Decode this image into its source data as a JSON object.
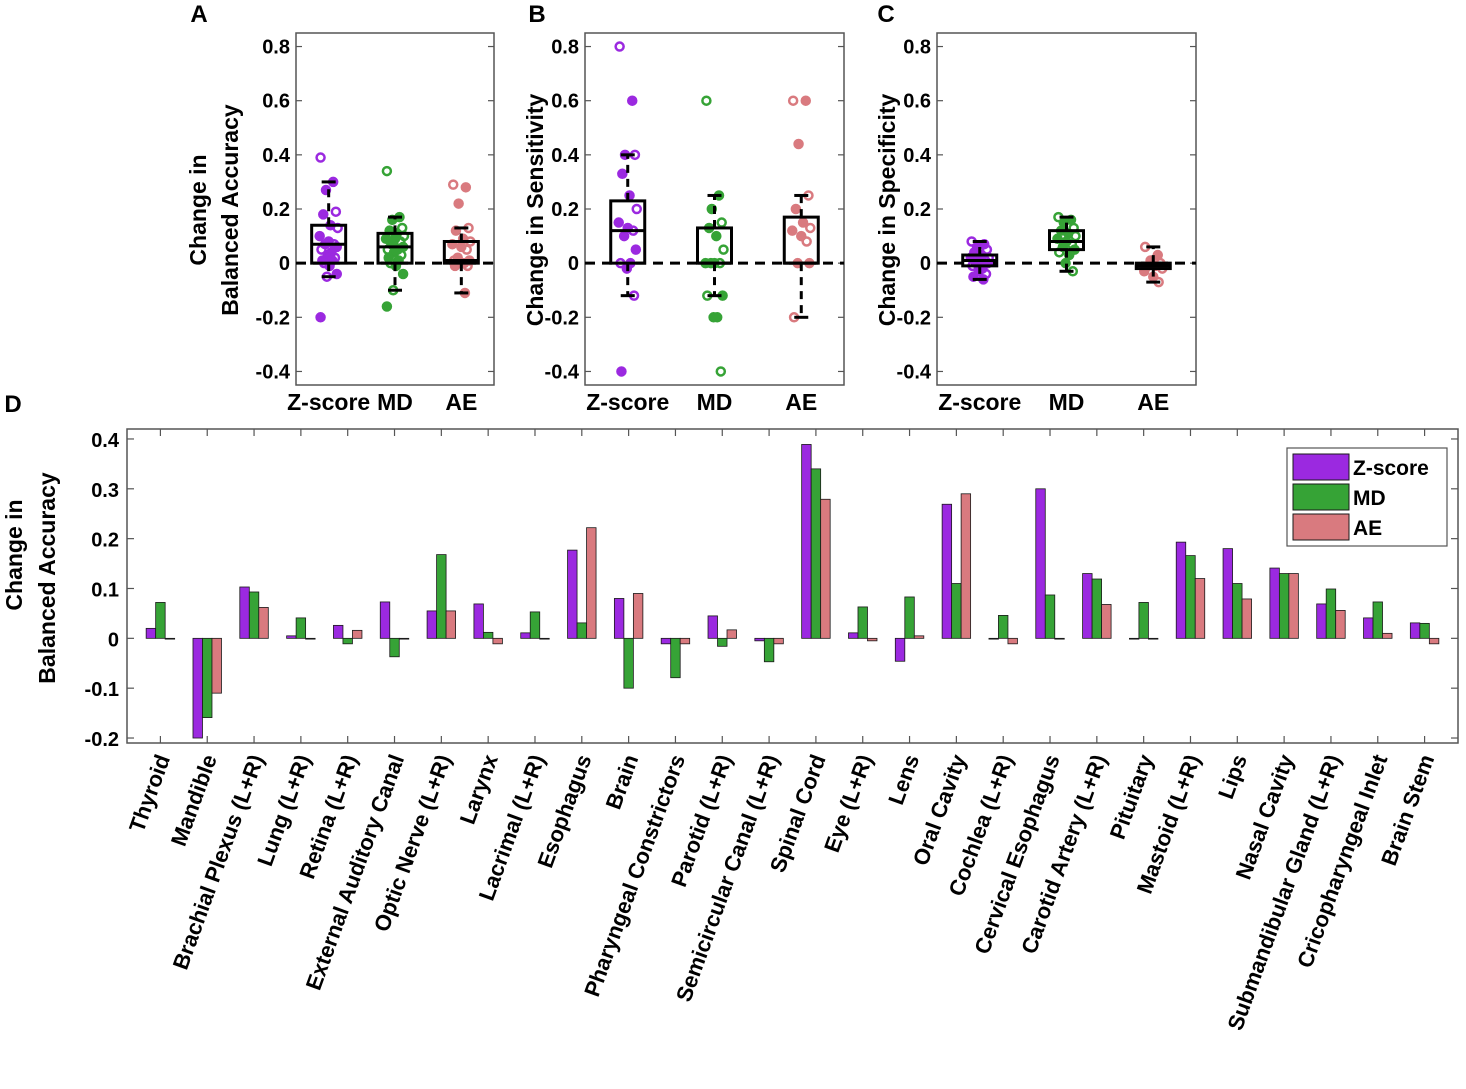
{
  "colors": {
    "zscore": "#9b29e0",
    "md": "#36a336",
    "ae": "#d97a7f"
  },
  "panels": [
    {
      "letter": "A",
      "ylabel_line1": "Change in",
      "ylabel_line2": "Balanced Accuracy",
      "categories": [
        "Z-score",
        "MD",
        "AE"
      ],
      "ylim": [
        -0.45,
        0.85
      ],
      "yticks": [
        "0.8",
        "0.6",
        "0.4",
        "0.2",
        "0",
        "-0.2",
        "-0.4"
      ],
      "boxes": [
        {
          "q1": 0.0,
          "median": 0.07,
          "q3": 0.14,
          "whisker_low": -0.05,
          "whisker_high": 0.3
        },
        {
          "q1": 0.0,
          "median": 0.06,
          "q3": 0.11,
          "whisker_low": -0.1,
          "whisker_high": 0.17
        },
        {
          "q1": 0.0,
          "median": 0.01,
          "q3": 0.08,
          "whisker_low": -0.11,
          "whisker_high": 0.13
        }
      ],
      "points": [
        [
          0.39,
          0.3,
          0.27,
          0.19,
          0.18,
          0.14,
          0.13,
          0.1,
          0.08,
          0.07,
          0.07,
          0.06,
          0.05,
          0.04,
          0.03,
          0.02,
          0.01,
          0.01,
          0.0,
          -0.01,
          -0.04,
          -0.05,
          -0.2
        ],
        [
          0.34,
          0.17,
          0.16,
          0.13,
          0.12,
          0.11,
          0.1,
          0.09,
          0.09,
          0.08,
          0.07,
          0.06,
          0.05,
          0.05,
          0.04,
          0.03,
          0.02,
          0.01,
          0.0,
          -0.01,
          -0.04,
          -0.1,
          -0.16
        ],
        [
          0.29,
          0.28,
          0.22,
          0.13,
          0.12,
          0.09,
          0.08,
          0.07,
          0.06,
          0.05,
          0.02,
          0.01,
          0.01,
          0.0,
          0.0,
          -0.01,
          -0.01,
          -0.11
        ]
      ]
    },
    {
      "letter": "B",
      "ylabel_line1": "Change in Sensitivity",
      "ylabel_line2": "",
      "categories": [
        "Z-score",
        "MD",
        "AE"
      ],
      "ylim": [
        -0.45,
        0.85
      ],
      "yticks": [
        "0.8",
        "0.6",
        "0.4",
        "0.2",
        "0",
        "-0.2",
        "-0.4"
      ],
      "boxes": [
        {
          "q1": 0.0,
          "median": 0.12,
          "q3": 0.23,
          "whisker_low": -0.12,
          "whisker_high": 0.4
        },
        {
          "q1": 0.0,
          "median": 0.0,
          "q3": 0.13,
          "whisker_low": -0.12,
          "whisker_high": 0.25
        },
        {
          "q1": 0.0,
          "median": 0.0,
          "q3": 0.17,
          "whisker_low": -0.2,
          "whisker_high": 0.25
        }
      ],
      "points": [
        [
          0.8,
          0.6,
          0.4,
          0.4,
          0.33,
          0.25,
          0.2,
          0.15,
          0.13,
          0.12,
          0.1,
          0.05,
          0.0,
          0.0,
          -0.02,
          -0.12,
          -0.4
        ],
        [
          0.6,
          0.25,
          0.2,
          0.15,
          0.13,
          0.1,
          0.05,
          0.0,
          0.0,
          0.0,
          0.0,
          -0.12,
          -0.12,
          -0.2,
          -0.2,
          -0.4
        ],
        [
          0.6,
          0.6,
          0.44,
          0.25,
          0.2,
          0.15,
          0.13,
          0.12,
          0.1,
          0.08,
          0.0,
          0.0,
          -0.2
        ]
      ]
    },
    {
      "letter": "C",
      "ylabel_line1": "Change in Specificity",
      "ylabel_line2": "",
      "categories": [
        "Z-score",
        "MD",
        "AE"
      ],
      "ylim": [
        -0.45,
        0.85
      ],
      "yticks": [
        "0.8",
        "0.6",
        "0.4",
        "0.2",
        "0",
        "-0.2",
        "-0.4"
      ],
      "boxes": [
        {
          "q1": -0.01,
          "median": 0.01,
          "q3": 0.03,
          "whisker_low": -0.06,
          "whisker_high": 0.08
        },
        {
          "q1": 0.05,
          "median": 0.08,
          "q3": 0.12,
          "whisker_low": -0.03,
          "whisker_high": 0.17
        },
        {
          "q1": -0.02,
          "median": -0.01,
          "q3": 0.0,
          "whisker_low": -0.07,
          "whisker_high": 0.06
        }
      ],
      "points": [
        [
          0.08,
          0.07,
          0.06,
          0.05,
          0.04,
          0.03,
          0.02,
          0.02,
          0.01,
          0.01,
          0.0,
          0.0,
          -0.01,
          -0.02,
          -0.03,
          -0.04,
          -0.05,
          -0.06
        ],
        [
          0.17,
          0.16,
          0.15,
          0.13,
          0.12,
          0.11,
          0.1,
          0.09,
          0.08,
          0.07,
          0.06,
          0.05,
          0.04,
          0.03,
          0.0,
          -0.03
        ],
        [
          0.06,
          0.03,
          0.01,
          0.0,
          -0.01,
          -0.01,
          -0.02,
          -0.03,
          -0.05,
          -0.07
        ]
      ]
    }
  ],
  "chart_data": {
    "type": "bar",
    "letter": "D",
    "ylabel_line1": "Change in",
    "ylabel_line2": "Balanced Accuracy",
    "ylim": [
      -0.21,
      0.42
    ],
    "yticks": [
      "0.4",
      "0.3",
      "0.2",
      "0.1",
      "0",
      "-0.1",
      "-0.2"
    ],
    "legend": [
      "Z-score",
      "MD",
      "AE"
    ],
    "categories": [
      "Thyroid",
      "Mandible",
      "Brachial Plexus (L+R)",
      "Lung (L+R)",
      "Retina (L+R)",
      "External Auditory Canal",
      "Optic Nerve (L+R)",
      "Larynx",
      "Lacrimal (L+R)",
      "Esophagus",
      "Brain",
      "Pharyngeal Constrictors",
      "Parotid (L+R)",
      "Semicircular Canal (L+R)",
      "Spinal Cord",
      "Eye (L+R)",
      "Lens",
      "Oral Cavity",
      "Cochlea (L+R)",
      "Cervical Esophagus",
      "Carotid Artery (L+R)",
      "Pituitary",
      "Mastoid (L+R)",
      "Lips",
      "Nasal Cavity",
      "Submandibular Gland (L+R)",
      "Cricopharyngeal Inlet",
      "Brain Stem"
    ],
    "series": [
      {
        "name": "Z-score",
        "values": [
          0.02,
          -0.2,
          0.103,
          0.005,
          0.026,
          0.073,
          0.055,
          0.069,
          0.011,
          0.177,
          0.08,
          -0.011,
          0.045,
          -0.005,
          0.389,
          0.011,
          -0.046,
          0.269,
          0.0,
          0.3,
          0.13,
          0.0,
          0.193,
          0.18,
          0.141,
          0.069,
          0.041,
          0.031
        ]
      },
      {
        "name": "MD",
        "values": [
          0.072,
          -0.159,
          0.093,
          0.041,
          -0.011,
          -0.037,
          0.168,
          0.012,
          0.053,
          0.031,
          -0.1,
          -0.079,
          -0.016,
          -0.047,
          0.34,
          0.063,
          0.083,
          0.11,
          0.046,
          0.087,
          0.119,
          0.072,
          0.166,
          0.11,
          0.13,
          0.099,
          0.073,
          0.03
        ]
      },
      {
        "name": "AE",
        "values": [
          0.0,
          -0.11,
          0.062,
          0.0,
          0.016,
          0.0,
          0.055,
          -0.011,
          0.0,
          0.222,
          0.09,
          -0.011,
          0.017,
          -0.011,
          0.279,
          -0.005,
          0.005,
          0.29,
          -0.011,
          0.0,
          0.068,
          0.0,
          0.12,
          0.079,
          0.13,
          0.056,
          0.01,
          -0.011
        ]
      }
    ]
  }
}
